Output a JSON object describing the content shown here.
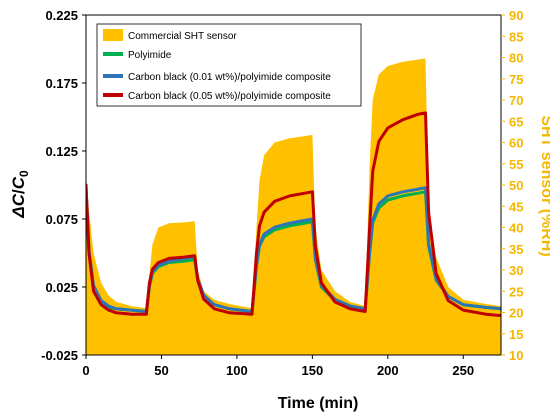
{
  "chart_data": {
    "type": "line",
    "xlabel": "Time (min)",
    "ylabel": {
      "italic_a": "ΔC",
      "slash": "/",
      "italic_c": "C",
      "sub": "0"
    },
    "y2label": "SHT sensor (%RH)",
    "xlim": [
      0,
      275
    ],
    "ylim": [
      -0.025,
      0.225
    ],
    "y2lim": [
      10,
      90
    ],
    "xticks": [
      0,
      50,
      100,
      150,
      200,
      250
    ],
    "yticks": [
      -0.025,
      0.025,
      0.075,
      0.125,
      0.175,
      0.225
    ],
    "ytick_labels": [
      "-0.025",
      "0.025",
      "0.075",
      "0.125",
      "0.175",
      "0.225"
    ],
    "y2ticks": [
      10,
      15,
      20,
      25,
      30,
      35,
      40,
      45,
      50,
      55,
      60,
      65,
      70,
      75,
      80,
      85,
      90
    ],
    "grid": false,
    "legend_position": "top-left",
    "colors": {
      "sht": "#ffc000",
      "pi": "#00b050",
      "cb001": "#2e75b6",
      "cb005": "#c00000",
      "right_axis": "#f5b700"
    },
    "sht_baseline_rh": 10,
    "series": [
      {
        "name": "Commercial SHT sensor",
        "axis": "right",
        "kind": "area",
        "color": "#ffc000",
        "x": [
          0,
          2,
          5,
          10,
          15,
          20,
          30,
          40,
          42,
          44,
          48,
          55,
          65,
          72,
          74,
          78,
          85,
          95,
          110,
          113,
          115,
          118,
          125,
          135,
          145,
          150,
          152,
          156,
          165,
          175,
          185,
          188,
          190,
          194,
          200,
          210,
          220,
          225,
          227,
          232,
          240,
          250,
          265,
          275
        ],
        "y": [
          52,
          44,
          34,
          27,
          24,
          22.5,
          21.5,
          21,
          29,
          36,
          40,
          41,
          41.2,
          41.5,
          30,
          25,
          23,
          22,
          21,
          40,
          51,
          57,
          60,
          61,
          61.5,
          61.8,
          40,
          30,
          25,
          22.5,
          21.5,
          55,
          70,
          76,
          78,
          79,
          79.5,
          79.8,
          45,
          33,
          26,
          23,
          22,
          21.5
        ]
      },
      {
        "name": "Polyimide",
        "axis": "left",
        "color": "#00b050",
        "x": [
          0,
          2,
          5,
          10,
          15,
          20,
          30,
          40,
          42,
          44,
          48,
          55,
          65,
          72,
          74,
          78,
          85,
          95,
          110,
          113,
          115,
          118,
          125,
          135,
          145,
          150,
          152,
          156,
          165,
          175,
          185,
          188,
          190,
          194,
          200,
          210,
          220,
          225,
          227,
          232,
          240,
          250,
          265,
          275
        ],
        "y": [
          0.095,
          0.05,
          0.025,
          0.014,
          0.01,
          0.009,
          0.008,
          0.007,
          0.025,
          0.035,
          0.04,
          0.043,
          0.044,
          0.045,
          0.03,
          0.018,
          0.012,
          0.009,
          0.007,
          0.04,
          0.055,
          0.062,
          0.067,
          0.07,
          0.072,
          0.073,
          0.045,
          0.025,
          0.015,
          0.011,
          0.009,
          0.05,
          0.072,
          0.083,
          0.089,
          0.092,
          0.094,
          0.095,
          0.055,
          0.03,
          0.018,
          0.012,
          0.01,
          0.009
        ]
      },
      {
        "name": "Carbon black (0.01 wt%)/polyimide composite",
        "axis": "left",
        "color": "#2e75b6",
        "x": [
          0,
          2,
          5,
          10,
          15,
          20,
          30,
          40,
          42,
          44,
          48,
          55,
          65,
          72,
          74,
          78,
          85,
          95,
          110,
          113,
          115,
          118,
          125,
          135,
          145,
          150,
          152,
          156,
          165,
          175,
          185,
          188,
          190,
          194,
          200,
          210,
          220,
          225,
          227,
          232,
          240,
          250,
          265,
          275
        ],
        "y": [
          0.098,
          0.052,
          0.026,
          0.015,
          0.011,
          0.009,
          0.008,
          0.007,
          0.026,
          0.036,
          0.041,
          0.044,
          0.046,
          0.047,
          0.031,
          0.019,
          0.012,
          0.009,
          0.007,
          0.041,
          0.056,
          0.064,
          0.069,
          0.072,
          0.074,
          0.075,
          0.046,
          0.026,
          0.016,
          0.011,
          0.009,
          0.052,
          0.074,
          0.086,
          0.092,
          0.095,
          0.097,
          0.098,
          0.057,
          0.031,
          0.018,
          0.012,
          0.01,
          0.009
        ]
      },
      {
        "name": "Carbon black (0.05 wt%)/polyimide composite",
        "axis": "left",
        "color": "#c00000",
        "x": [
          0,
          2,
          5,
          10,
          15,
          20,
          30,
          40,
          42,
          44,
          48,
          55,
          65,
          72,
          74,
          78,
          85,
          95,
          110,
          113,
          115,
          118,
          125,
          135,
          145,
          150,
          152,
          156,
          165,
          175,
          185,
          188,
          190,
          194,
          200,
          210,
          220,
          225,
          227,
          232,
          240,
          250,
          265,
          275
        ],
        "y": [
          0.1,
          0.05,
          0.022,
          0.012,
          0.008,
          0.006,
          0.005,
          0.005,
          0.028,
          0.038,
          0.043,
          0.046,
          0.047,
          0.048,
          0.03,
          0.016,
          0.009,
          0.006,
          0.005,
          0.05,
          0.07,
          0.08,
          0.088,
          0.092,
          0.094,
          0.095,
          0.055,
          0.028,
          0.014,
          0.009,
          0.007,
          0.07,
          0.11,
          0.132,
          0.142,
          0.148,
          0.152,
          0.153,
          0.08,
          0.035,
          0.015,
          0.008,
          0.005,
          0.004
        ]
      }
    ]
  }
}
